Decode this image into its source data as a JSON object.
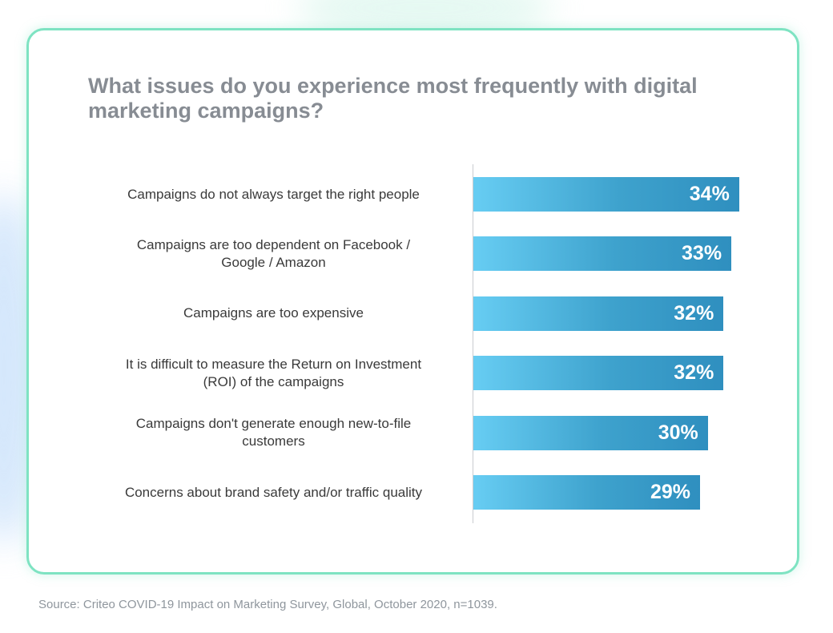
{
  "chart_data": {
    "type": "bar",
    "orientation": "horizontal",
    "title": "What issues do you experience most frequently with digital marketing campaigns?",
    "categories": [
      "Campaigns do not always target the right people",
      "Campaigns are too dependent on Facebook / Google / Amazon",
      "Campaigns are too expensive",
      "It is difficult to measure the Return on Investment (ROI) of the campaigns",
      "Campaigns don't generate enough new-to-file customers",
      "Concerns about brand safety and/or traffic quality"
    ],
    "category_lines": [
      [
        "Campaigns do not always target the right people"
      ],
      [
        "Campaigns are too dependent on Facebook /",
        "Google / Amazon"
      ],
      [
        "Campaigns are too expensive"
      ],
      [
        "It is difficult to measure the Return on Investment",
        "(ROI) of the campaigns"
      ],
      [
        "Campaigns don't generate enough new-to-file",
        "customers"
      ],
      [
        "Concerns about brand safety and/or traffic quality"
      ]
    ],
    "values": [
      34,
      33,
      32,
      32,
      30,
      29
    ],
    "value_labels": [
      "34%",
      "33%",
      "32%",
      "32%",
      "30%",
      "29%"
    ],
    "unit": "%",
    "grid": false,
    "legend": "none",
    "bar_color": "#3ea2cd",
    "bar_color_light": "#67cdf3"
  },
  "source": "Source: Criteo COVID-19 Impact on Marketing Survey, Global, October 2020, n=1039.",
  "colors": {
    "card_border": "#7ee3c2",
    "title": "#878c93",
    "source": "#8f969d"
  }
}
